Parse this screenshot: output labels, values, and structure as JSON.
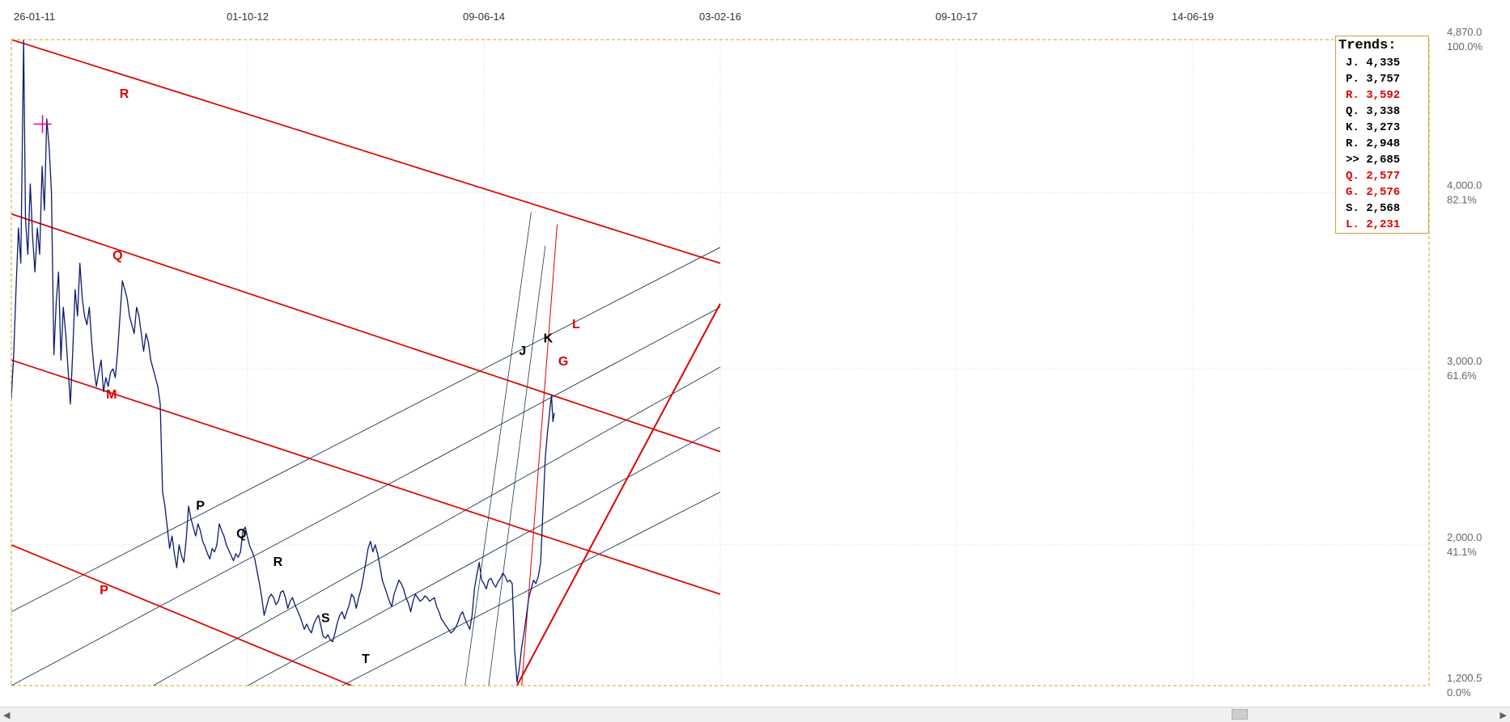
{
  "chart_data": {
    "type": "line",
    "x_ticks": [
      "26-01-11",
      "01-10-12",
      "09-06-14",
      "03-02-16",
      "09-10-17",
      "14-06-19"
    ],
    "y_ticks": [
      {
        "value": 4870.0,
        "price": "4,870.0",
        "pct": "100.0%"
      },
      {
        "value": 4000.0,
        "price": "4,000.0",
        "pct": "82.1%"
      },
      {
        "value": 3000.0,
        "price": "3,000.0",
        "pct": "61.6%"
      },
      {
        "value": 2000.0,
        "price": "2,000.0",
        "pct": "41.1%"
      },
      {
        "value": 1200.5,
        "price": "1,200.5",
        "pct": "0.0%"
      }
    ],
    "ylim": [
      1200.5,
      4870.0
    ],
    "grid": true,
    "price_series": {
      "color": "#0d1a6e",
      "points": [
        [
          0,
          2830
        ],
        [
          0.005,
          3080
        ],
        [
          0.01,
          3450
        ],
        [
          0.015,
          3800
        ],
        [
          0.02,
          3600
        ],
        [
          0.023,
          4200
        ],
        [
          0.026,
          4870
        ],
        [
          0.03,
          3850
        ],
        [
          0.035,
          3650
        ],
        [
          0.04,
          4050
        ],
        [
          0.045,
          3750
        ],
        [
          0.05,
          3550
        ],
        [
          0.055,
          3800
        ],
        [
          0.06,
          3650
        ],
        [
          0.065,
          4150
        ],
        [
          0.07,
          3900
        ],
        [
          0.075,
          4420
        ],
        [
          0.08,
          4260
        ],
        [
          0.085,
          4000
        ],
        [
          0.09,
          3080
        ],
        [
          0.095,
          3380
        ],
        [
          0.1,
          3550
        ],
        [
          0.105,
          3050
        ],
        [
          0.11,
          3350
        ],
        [
          0.115,
          3200
        ],
        [
          0.12,
          3000
        ],
        [
          0.125,
          2800
        ],
        [
          0.13,
          3100
        ],
        [
          0.135,
          3450
        ],
        [
          0.14,
          3300
        ],
        [
          0.145,
          3600
        ],
        [
          0.15,
          3400
        ],
        [
          0.155,
          3300
        ],
        [
          0.16,
          3250
        ],
        [
          0.165,
          3350
        ],
        [
          0.17,
          3150
        ],
        [
          0.175,
          3000
        ],
        [
          0.18,
          2900
        ],
        [
          0.185,
          2980
        ],
        [
          0.19,
          3050
        ],
        [
          0.195,
          2870
        ],
        [
          0.2,
          2950
        ],
        [
          0.205,
          2900
        ],
        [
          0.21,
          2980
        ],
        [
          0.215,
          3000
        ],
        [
          0.22,
          2950
        ],
        [
          0.225,
          3100
        ],
        [
          0.23,
          3300
        ],
        [
          0.235,
          3500
        ],
        [
          0.24,
          3450
        ],
        [
          0.245,
          3400
        ],
        [
          0.25,
          3300
        ],
        [
          0.255,
          3250
        ],
        [
          0.26,
          3200
        ],
        [
          0.265,
          3350
        ],
        [
          0.27,
          3300
        ],
        [
          0.275,
          3200
        ],
        [
          0.28,
          3100
        ],
        [
          0.285,
          3200
        ],
        [
          0.29,
          3150
        ],
        [
          0.295,
          3050
        ],
        [
          0.3,
          3000
        ],
        [
          0.305,
          2950
        ],
        [
          0.31,
          2900
        ],
        [
          0.315,
          2800
        ],
        [
          0.32,
          2300
        ],
        [
          0.325,
          2220
        ],
        [
          0.33,
          2100
        ],
        [
          0.335,
          1980
        ],
        [
          0.34,
          2050
        ],
        [
          0.345,
          1950
        ],
        [
          0.35,
          1870
        ],
        [
          0.355,
          2000
        ],
        [
          0.36,
          1940
        ],
        [
          0.365,
          1900
        ],
        [
          0.37,
          2030
        ],
        [
          0.375,
          2220
        ],
        [
          0.38,
          2150
        ],
        [
          0.385,
          2100
        ],
        [
          0.39,
          2050
        ],
        [
          0.395,
          2120
        ],
        [
          0.4,
          2080
        ],
        [
          0.405,
          2020
        ],
        [
          0.41,
          1990
        ],
        [
          0.415,
          1950
        ],
        [
          0.42,
          1920
        ],
        [
          0.425,
          1980
        ],
        [
          0.43,
          1960
        ],
        [
          0.435,
          2000
        ],
        [
          0.44,
          2120
        ],
        [
          0.445,
          2080
        ],
        [
          0.45,
          2050
        ],
        [
          0.455,
          2000
        ],
        [
          0.46,
          1970
        ],
        [
          0.465,
          1940
        ],
        [
          0.47,
          1910
        ],
        [
          0.475,
          1950
        ],
        [
          0.48,
          1930
        ],
        [
          0.485,
          1960
        ],
        [
          0.49,
          2080
        ],
        [
          0.495,
          2100
        ],
        [
          0.5,
          2040
        ],
        [
          0.505,
          1990
        ],
        [
          0.51,
          1960
        ],
        [
          0.515,
          1920
        ],
        [
          0.52,
          1850
        ],
        [
          0.525,
          1780
        ],
        [
          0.53,
          1700
        ],
        [
          0.535,
          1600
        ],
        [
          0.54,
          1650
        ],
        [
          0.545,
          1700
        ],
        [
          0.55,
          1720
        ],
        [
          0.555,
          1700
        ],
        [
          0.56,
          1660
        ],
        [
          0.565,
          1680
        ],
        [
          0.57,
          1730
        ],
        [
          0.575,
          1740
        ],
        [
          0.58,
          1700
        ],
        [
          0.585,
          1640
        ],
        [
          0.59,
          1680
        ],
        [
          0.595,
          1700
        ],
        [
          0.6,
          1660
        ],
        [
          0.605,
          1630
        ],
        [
          0.61,
          1600
        ],
        [
          0.615,
          1560
        ],
        [
          0.62,
          1520
        ],
        [
          0.625,
          1550
        ],
        [
          0.63,
          1520
        ],
        [
          0.635,
          1500
        ],
        [
          0.64,
          1550
        ],
        [
          0.645,
          1580
        ],
        [
          0.65,
          1600
        ],
        [
          0.655,
          1540
        ],
        [
          0.66,
          1480
        ],
        [
          0.665,
          1470
        ],
        [
          0.67,
          1490
        ],
        [
          0.675,
          1460
        ],
        [
          0.68,
          1450
        ],
        [
          0.685,
          1500
        ],
        [
          0.69,
          1560
        ],
        [
          0.695,
          1600
        ],
        [
          0.7,
          1620
        ],
        [
          0.705,
          1580
        ],
        [
          0.71,
          1620
        ],
        [
          0.715,
          1660
        ],
        [
          0.72,
          1720
        ],
        [
          0.725,
          1700
        ],
        [
          0.73,
          1640
        ],
        [
          0.735,
          1700
        ],
        [
          0.74,
          1750
        ],
        [
          0.745,
          1820
        ],
        [
          0.75,
          1900
        ],
        [
          0.755,
          1980
        ],
        [
          0.76,
          2020
        ],
        [
          0.765,
          1960
        ],
        [
          0.77,
          2000
        ],
        [
          0.775,
          1950
        ],
        [
          0.78,
          1880
        ],
        [
          0.785,
          1800
        ],
        [
          0.79,
          1760
        ],
        [
          0.795,
          1720
        ],
        [
          0.8,
          1680
        ],
        [
          0.805,
          1650
        ],
        [
          0.81,
          1720
        ],
        [
          0.815,
          1760
        ],
        [
          0.82,
          1800
        ],
        [
          0.825,
          1780
        ],
        [
          0.83,
          1750
        ],
        [
          0.835,
          1700
        ],
        [
          0.84,
          1670
        ],
        [
          0.845,
          1620
        ],
        [
          0.85,
          1680
        ],
        [
          0.855,
          1720
        ],
        [
          0.86,
          1700
        ],
        [
          0.865,
          1680
        ],
        [
          0.87,
          1690
        ],
        [
          0.875,
          1710
        ],
        [
          0.88,
          1700
        ],
        [
          0.885,
          1680
        ],
        [
          0.89,
          1690
        ],
        [
          0.895,
          1700
        ],
        [
          0.9,
          1650
        ],
        [
          0.905,
          1620
        ],
        [
          0.91,
          1580
        ],
        [
          0.915,
          1560
        ],
        [
          0.92,
          1540
        ],
        [
          0.925,
          1520
        ],
        [
          0.93,
          1500
        ],
        [
          0.935,
          1510
        ],
        [
          0.94,
          1530
        ],
        [
          0.945,
          1560
        ],
        [
          0.95,
          1600
        ],
        [
          0.955,
          1620
        ],
        [
          0.96,
          1580
        ],
        [
          0.965,
          1550
        ],
        [
          0.97,
          1520
        ],
        [
          0.975,
          1600
        ],
        [
          0.98,
          1750
        ],
        [
          0.985,
          1830
        ],
        [
          0.99,
          1900
        ],
        [
          0.995,
          1800
        ],
        [
          1.0,
          1780
        ],
        [
          1.005,
          1750
        ],
        [
          1.01,
          1800
        ],
        [
          1.015,
          1810
        ],
        [
          1.02,
          1780
        ],
        [
          1.025,
          1760
        ],
        [
          1.03,
          1790
        ],
        [
          1.035,
          1810
        ],
        [
          1.04,
          1840
        ],
        [
          1.045,
          1820
        ],
        [
          1.05,
          1790
        ],
        [
          1.055,
          1800
        ],
        [
          1.06,
          1780
        ],
        [
          1.065,
          1400
        ],
        [
          1.07,
          1220
        ],
        [
          1.075,
          1300
        ],
        [
          1.08,
          1420
        ],
        [
          1.085,
          1500
        ],
        [
          1.09,
          1600
        ],
        [
          1.095,
          1700
        ],
        [
          1.1,
          1750
        ],
        [
          1.105,
          1800
        ],
        [
          1.11,
          1780
        ],
        [
          1.115,
          1820
        ],
        [
          1.12,
          1900
        ],
        [
          1.125,
          2200
        ],
        [
          1.13,
          2500
        ],
        [
          1.135,
          2650
        ],
        [
          1.14,
          2780
        ],
        [
          1.143,
          2850
        ],
        [
          1.146,
          2700
        ],
        [
          1.149,
          2750
        ]
      ]
    },
    "red_channels": [
      {
        "label": "R",
        "y0": 4870,
        "x1": 1.5,
        "y1": 3600
      },
      {
        "label": "Q",
        "y0": 3880,
        "x1": 1.5,
        "y1": 2530
      },
      {
        "label": "M",
        "y0": 3050,
        "x1": 1.5,
        "y1": 1720
      },
      {
        "label": "P",
        "y0": 2000,
        "x1": 0.72,
        "y1": 1200.5
      }
    ],
    "black_channels": [
      {
        "label": "P",
        "x0": 0,
        "y0": 1620,
        "x1": 1.5,
        "y1": 3690
      },
      {
        "label": "Q",
        "x0": 0,
        "y0": 1200.5,
        "x1": 1.5,
        "y1": 3350
      },
      {
        "label": "R",
        "x0": 0.3,
        "y0": 1200.5,
        "x1": 1.5,
        "y1": 3010
      },
      {
        "label": "S",
        "x0": 0.5,
        "y0": 1200.5,
        "x1": 1.5,
        "y1": 2670
      },
      {
        "label": "T",
        "x0": 0.7,
        "y0": 1200.5,
        "x1": 1.5,
        "y1": 2300
      }
    ],
    "steep_lines": [
      {
        "label": "J",
        "color": "#1d3b4f",
        "width": 0.8,
        "x0": 0.96,
        "y0": 1200.5,
        "x1": 1.1,
        "y1": 3890
      },
      {
        "label": "K",
        "color": "#1d3b4f",
        "width": 0.8,
        "x0": 1.01,
        "y0": 1200.5,
        "x1": 1.13,
        "y1": 3700
      },
      {
        "label": "G",
        "color": "#dd0000",
        "width": 1.0,
        "x0": 1.08,
        "y0": 1200.5,
        "x1": 1.155,
        "y1": 3820
      },
      {
        "label": "L",
        "color": "#dd0000",
        "width": 2.0,
        "x0": 1.07,
        "y0": 1200.5,
        "x1": 1.5,
        "y1": 3370
      }
    ],
    "label_marks": [
      {
        "text": "R",
        "color": "#dd0000",
        "x": 0.239,
        "y": 4540
      },
      {
        "text": "Q",
        "color": "#dd0000",
        "x": 0.225,
        "y": 3620
      },
      {
        "text": "M",
        "color": "#dd0000",
        "x": 0.212,
        "y": 2830
      },
      {
        "text": "P",
        "color": "#dd0000",
        "x": 0.196,
        "y": 1720
      },
      {
        "text": "P",
        "color": "#000000",
        "x": 0.4,
        "y": 2200
      },
      {
        "text": "Q",
        "color": "#000000",
        "x": 0.487,
        "y": 2040
      },
      {
        "text": "R",
        "color": "#000000",
        "x": 0.564,
        "y": 1880
      },
      {
        "text": "S",
        "color": "#000000",
        "x": 0.665,
        "y": 1560
      },
      {
        "text": "T",
        "color": "#000000",
        "x": 0.75,
        "y": 1330
      },
      {
        "text": "J",
        "color": "#000000",
        "x": 1.082,
        "y": 3080
      },
      {
        "text": "K",
        "color": "#000000",
        "x": 1.136,
        "y": 3150
      },
      {
        "text": "G",
        "color": "#dd0000",
        "x": 1.168,
        "y": 3020
      },
      {
        "text": "L",
        "color": "#dd0000",
        "x": 1.195,
        "y": 3230
      }
    ],
    "marker": {
      "color": "#e0008a",
      "x": 0.066,
      "y": 4390
    }
  },
  "legend": {
    "title": "Trends:",
    "rows": [
      {
        "text": "J. 4,335",
        "color": "#000000"
      },
      {
        "text": "P. 3,757",
        "color": "#000000"
      },
      {
        "text": "R. 3,592",
        "color": "#dd0000"
      },
      {
        "text": "Q. 3,338",
        "color": "#000000"
      },
      {
        "text": "K. 3,273",
        "color": "#000000"
      },
      {
        "text": "R. 2,948",
        "color": "#000000"
      },
      {
        "text": ">> 2,685",
        "color": "#000000"
      },
      {
        "text": "Q. 2,577",
        "color": "#dd0000"
      },
      {
        "text": "G. 2,576",
        "color": "#dd0000"
      },
      {
        "text": "S. 2,568",
        "color": "#000000"
      },
      {
        "text": "L. 2,231",
        "color": "#dd0000"
      }
    ]
  },
  "scrollbar": {
    "left_arrow": "◀",
    "right_arrow": "▶"
  }
}
